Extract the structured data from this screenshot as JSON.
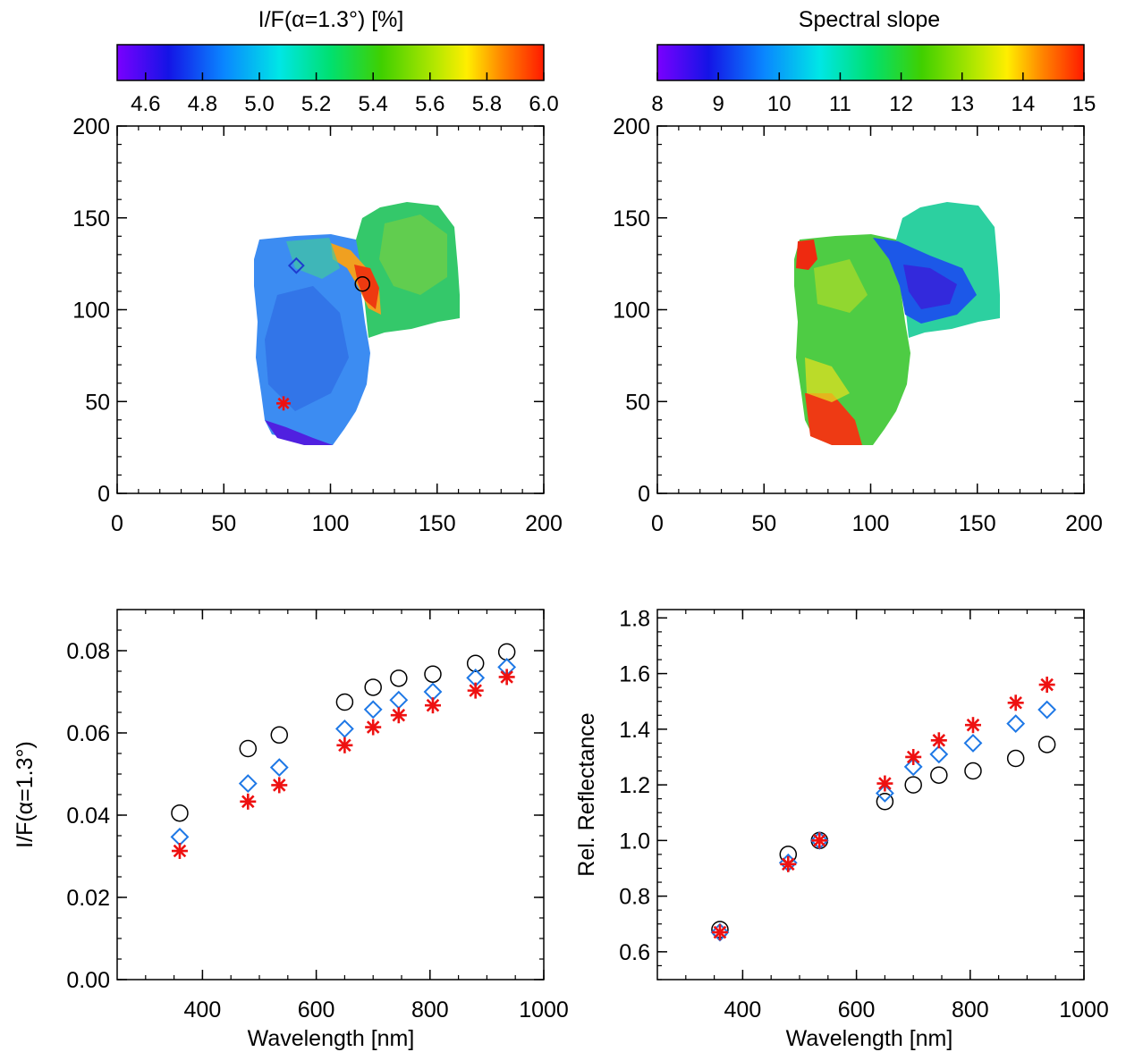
{
  "chart_data": [
    {
      "type": "heatmap",
      "colorbar_label": "I/F(α=1.3°) [%]",
      "colorbar_ticks": [
        "4.6",
        "4.8",
        "5.0",
        "5.2",
        "5.4",
        "5.6",
        "5.8",
        "6.0"
      ],
      "colorbar_range": [
        4.5,
        6.0
      ],
      "xlim": [
        0,
        200
      ],
      "ylim": [
        0,
        200
      ],
      "xticks": [
        "0",
        "50",
        "100",
        "150",
        "200"
      ],
      "yticks": [
        "0",
        "50",
        "100",
        "150",
        "200"
      ],
      "markers": [
        {
          "symbol": "circle",
          "x": 115,
          "y": 114,
          "color": "#000000"
        },
        {
          "symbol": "diamond",
          "x": 84,
          "y": 124,
          "color": "#1e3cd0"
        },
        {
          "symbol": "asterisk",
          "x": 78,
          "y": 49,
          "color": "#ee1111"
        }
      ]
    },
    {
      "type": "heatmap",
      "colorbar_label": "Spectral slope",
      "colorbar_ticks": [
        "8",
        "9",
        "10",
        "11",
        "12",
        "13",
        "14",
        "15"
      ],
      "colorbar_range": [
        8,
        15
      ],
      "xlim": [
        0,
        200
      ],
      "ylim": [
        0,
        200
      ],
      "xticks": [
        "0",
        "50",
        "100",
        "150",
        "200"
      ],
      "yticks": [
        "0",
        "50",
        "100",
        "150",
        "200"
      ]
    },
    {
      "type": "scatter",
      "xlabel": "Wavelength [nm]",
      "ylabel": "I/F(α=1.3°)",
      "xlim": [
        250,
        1000
      ],
      "ylim": [
        0,
        0.09
      ],
      "xticks": [
        "400",
        "600",
        "800",
        "1000"
      ],
      "yticks": [
        "0.00",
        "0.02",
        "0.04",
        "0.06",
        "0.08"
      ],
      "x": [
        360,
        480,
        535,
        650,
        700,
        745,
        805,
        880,
        935
      ],
      "series": [
        {
          "marker": "circle",
          "color": "#000000",
          "values": [
            0.0405,
            0.0562,
            0.0595,
            0.0675,
            0.0711,
            0.0733,
            0.0743,
            0.0769,
            0.0797
          ]
        },
        {
          "marker": "diamond",
          "color": "#1e78e6",
          "values": [
            0.0347,
            0.0477,
            0.0516,
            0.061,
            0.0657,
            0.068,
            0.07,
            0.0734,
            0.076
          ]
        },
        {
          "marker": "asterisk",
          "color": "#ee1111",
          "values": [
            0.0313,
            0.0433,
            0.0473,
            0.057,
            0.0614,
            0.0643,
            0.0667,
            0.0703,
            0.0736
          ]
        }
      ]
    },
    {
      "type": "scatter",
      "xlabel": "Wavelength [nm]",
      "ylabel": "Rel. Reflectance",
      "xlim": [
        250,
        1000
      ],
      "ylim": [
        0.5,
        1.83
      ],
      "xticks": [
        "400",
        "600",
        "800",
        "1000"
      ],
      "yticks": [
        "0.6",
        "0.8",
        "1.0",
        "1.2",
        "1.4",
        "1.6",
        "1.8"
      ],
      "x": [
        360,
        480,
        535,
        650,
        700,
        745,
        805,
        880,
        935
      ],
      "series": [
        {
          "marker": "circle",
          "color": "#000000",
          "values": [
            0.68,
            0.95,
            1.0,
            1.14,
            1.2,
            1.235,
            1.25,
            1.295,
            1.345
          ]
        },
        {
          "marker": "diamond",
          "color": "#1e78e6",
          "values": [
            0.67,
            0.92,
            1.0,
            1.17,
            1.265,
            1.31,
            1.35,
            1.42,
            1.47
          ]
        },
        {
          "marker": "asterisk",
          "color": "#ee1111",
          "values": [
            0.67,
            0.915,
            1.0,
            1.205,
            1.3,
            1.36,
            1.415,
            1.495,
            1.56
          ]
        }
      ]
    }
  ]
}
